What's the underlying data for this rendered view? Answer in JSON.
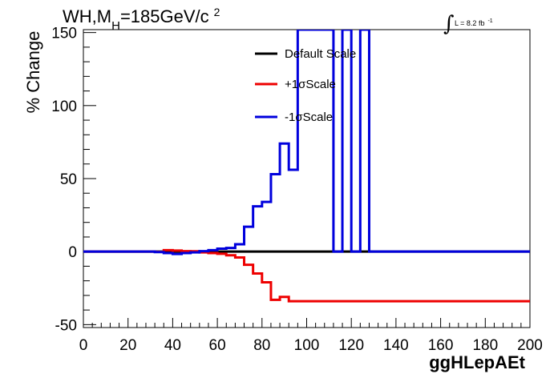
{
  "title": {
    "main": "WH,M",
    "sub": "H",
    "value": "=185GeV/c",
    "sup": "2"
  },
  "lumi": {
    "integral": "∫",
    "text": "L = 8.2 fb",
    "sup": "-1"
  },
  "chart_data": {
    "type": "line",
    "xlabel": "ggHLepAEt",
    "ylabel": "% Change",
    "xlim": [
      0,
      200
    ],
    "ylim": [
      -52,
      152
    ],
    "xticks": [
      0,
      20,
      40,
      60,
      80,
      100,
      120,
      140,
      160,
      180,
      200
    ],
    "yticks": [
      -50,
      0,
      50,
      100,
      150
    ],
    "ytick_labels": [
      "-50",
      "0",
      "50",
      "100",
      "150"
    ],
    "bin_width": 4,
    "grid": false,
    "legend_position": "top-center",
    "series": [
      {
        "name": "Default Scale",
        "color": "#000000",
        "values": [
          0,
          0,
          0,
          0,
          0,
          0,
          0,
          0,
          0,
          0,
          0,
          0,
          0,
          0,
          0,
          0,
          0,
          0,
          0,
          0,
          0,
          0,
          0,
          0,
          0,
          0,
          0,
          0,
          0,
          0,
          0,
          0,
          0,
          0,
          0,
          0,
          0,
          0,
          0,
          0,
          0,
          0,
          0,
          0,
          0,
          0,
          0,
          0,
          0,
          0
        ]
      },
      {
        "name": "+1σScale",
        "color": "#ee0000",
        "values": [
          0,
          0,
          0,
          0,
          0,
          0,
          0,
          0,
          -0.2,
          1,
          0.7,
          0.3,
          0.2,
          -0.5,
          -1,
          -1.5,
          -2.5,
          -4,
          -9,
          -15,
          -21,
          -33,
          -31,
          -34,
          -34,
          -34,
          -34,
          -34,
          -34,
          -34,
          -34,
          -34,
          -34,
          -34,
          -34,
          -34,
          -34,
          -34,
          -34,
          -34,
          -34,
          -34,
          -34,
          -34,
          -34,
          -34,
          -34,
          -34,
          -34,
          -34
        ],
        "note": ""
      },
      {
        "name": "-1σScale",
        "color": "#0000dd",
        "values": [
          0,
          0,
          0,
          0,
          0,
          0,
          0,
          0,
          -0.3,
          -1,
          -1.6,
          -1,
          -0.5,
          0.3,
          1,
          2,
          2.5,
          5,
          17,
          31,
          34,
          53,
          74,
          56,
          152,
          152,
          152,
          152,
          0,
          152,
          0,
          152,
          0,
          0,
          0,
          0,
          0,
          0,
          0,
          0,
          0,
          0,
          0,
          0,
          0,
          0,
          0,
          0,
          0,
          0
        ]
      }
    ]
  }
}
